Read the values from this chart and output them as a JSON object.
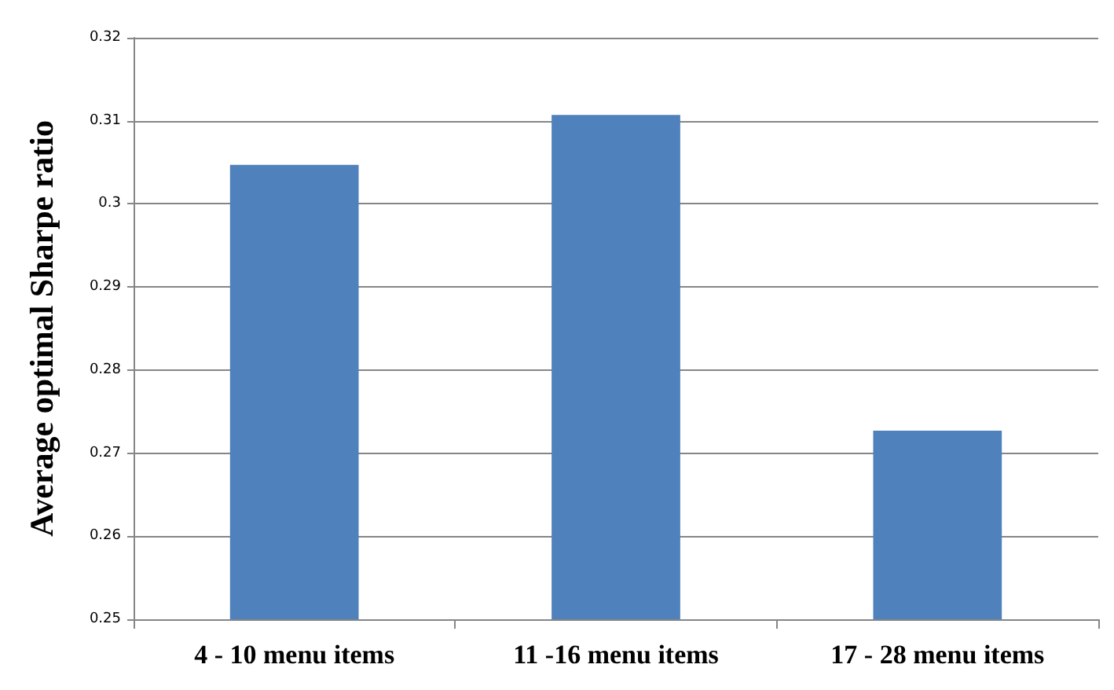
{
  "chart_data": {
    "type": "bar",
    "ylabel": "Average optimal Sharpe ratio",
    "categories": [
      "4 - 10 menu items",
      "11 -16 menu items",
      "17 - 28 menu items"
    ],
    "values": [
      0.3047,
      0.3107,
      0.2727
    ],
    "color": "#4f81bd",
    "ylim": [
      0.25,
      0.32
    ],
    "yticks": [
      0.25,
      0.26,
      0.27,
      0.28,
      0.29,
      0.3,
      0.31,
      0.32
    ],
    "grid": "y"
  }
}
